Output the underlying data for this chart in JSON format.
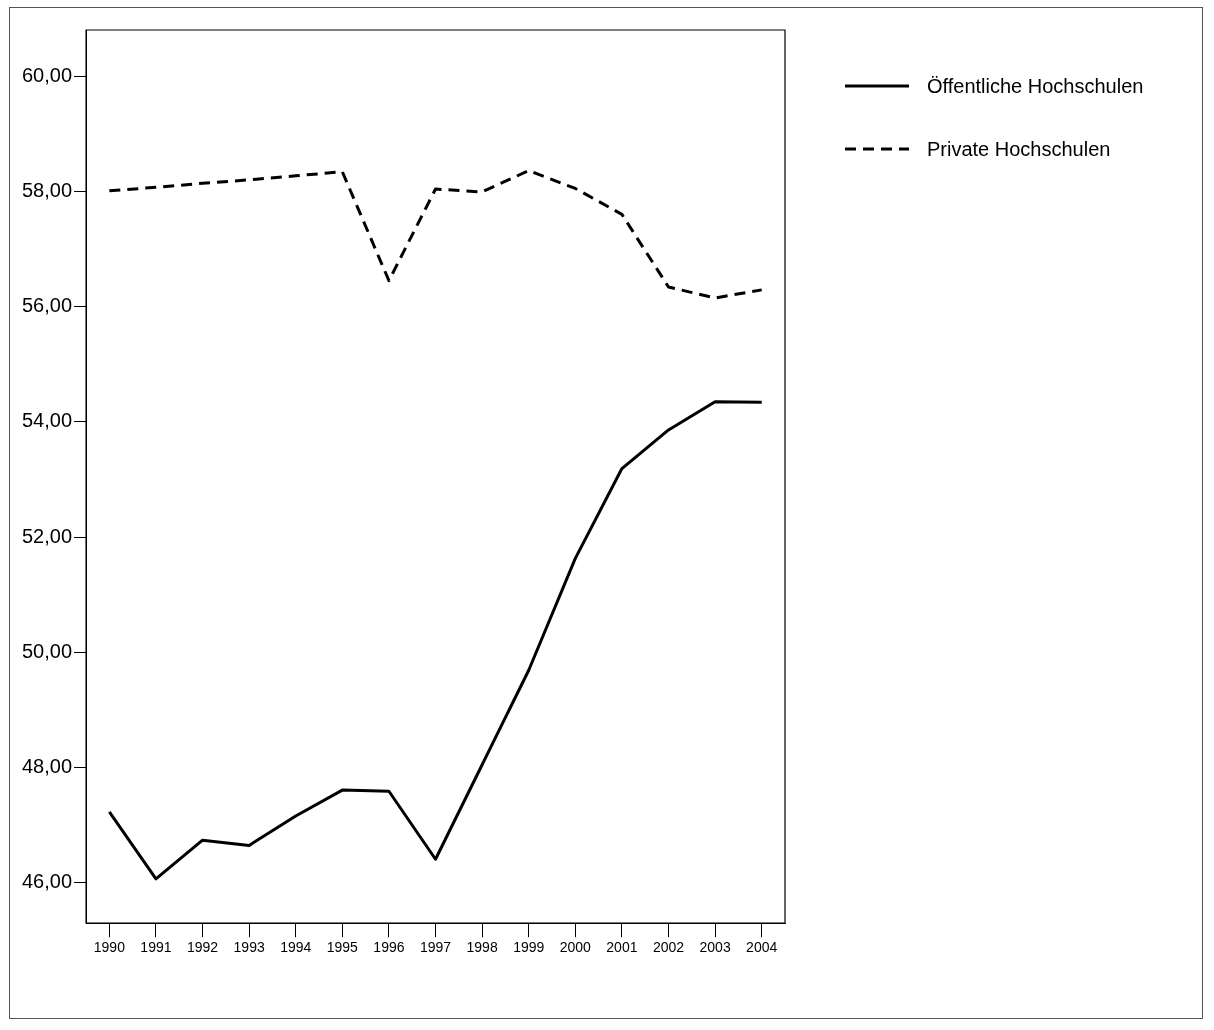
{
  "chart_data": {
    "type": "line",
    "categories": [
      "1990",
      "1991",
      "1992",
      "1993",
      "1994",
      "1995",
      "1996",
      "1997",
      "1998",
      "1999",
      "2000",
      "2001",
      "2002",
      "2003",
      "2004"
    ],
    "series": [
      {
        "name": "Öffentliche Hochschulen",
        "color": "#000000",
        "line_style": "solid",
        "values": [
          47.23,
          46.07,
          46.74,
          46.65,
          47.16,
          47.61,
          47.59,
          46.41,
          48.05,
          49.69,
          51.63,
          53.19,
          53.86,
          54.35,
          54.34
        ]
      },
      {
        "name": "Private Hochschulen",
        "color": "#000000",
        "line_style": "dashed",
        "values": [
          58.01,
          58.07,
          58.14,
          58.2,
          58.27,
          58.34,
          56.45,
          58.04,
          57.99,
          58.36,
          58.05,
          57.6,
          56.34,
          56.15,
          56.29
        ]
      }
    ],
    "ylim": [
      45.3,
      60.8
    ],
    "yticks": [
      {
        "value": 46,
        "label": "46,00"
      },
      {
        "value": 48,
        "label": "48,00"
      },
      {
        "value": 50,
        "label": "50,00"
      },
      {
        "value": 52,
        "label": "52,00"
      },
      {
        "value": 54,
        "label": "54,00"
      },
      {
        "value": 56,
        "label": "56,00"
      },
      {
        "value": 58,
        "label": "58,00"
      },
      {
        "value": 60,
        "label": "60,00"
      }
    ],
    "grid": false,
    "legend": "top right",
    "marker": "none"
  }
}
